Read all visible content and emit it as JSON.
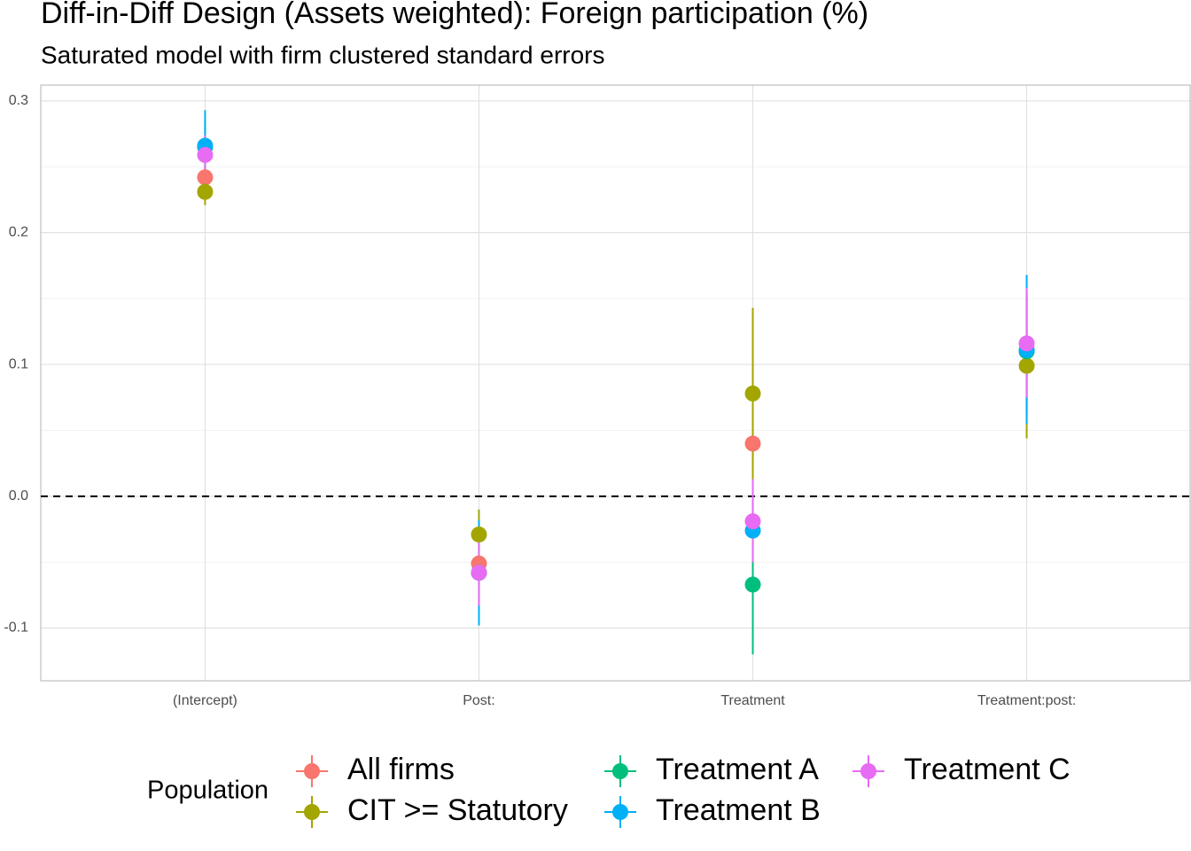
{
  "chart_data": {
    "type": "pointrange",
    "title": "Diff-in-Diff Design (Assets weighted): Foreign participation (%)",
    "subtitle": "Saturated model with firm clustered standard errors",
    "legend_title": "Population",
    "legend_position": "bottom",
    "categories": [
      "(Intercept)",
      "Post:",
      "Treatment",
      "Treatment:post:"
    ],
    "ylim": [
      -0.14,
      0.312
    ],
    "yticks": [
      -0.1,
      {
        "value": 0,
        "label": "0.0"
      },
      0.1,
      0.2,
      0.3
    ],
    "grid": true,
    "hline": 0,
    "series": [
      {
        "name": "All firms",
        "color": "#F8766D",
        "values": [
          0.242,
          -0.051,
          0.04,
          0.11
        ],
        "lower": [
          0.232,
          -0.06,
          0.02,
          0.096
        ],
        "upper": [
          0.252,
          -0.042,
          0.06,
          0.124
        ]
      },
      {
        "name": "CIT >= Statutory",
        "color": "#A3A500",
        "values": [
          0.231,
          -0.029,
          0.078,
          0.099
        ],
        "lower": [
          0.221,
          -0.048,
          0.013,
          0.044
        ],
        "upper": [
          0.241,
          -0.01,
          0.143,
          0.153
        ]
      },
      {
        "name": "Treatment A",
        "color": "#00BF7D",
        "values": [
          0.265,
          -0.058,
          -0.067,
          0.11
        ],
        "lower": [
          0.245,
          -0.08,
          -0.12,
          0.065
        ],
        "upper": [
          0.285,
          -0.036,
          -0.013,
          0.155
        ]
      },
      {
        "name": "Treatment B",
        "color": "#00B0F6",
        "values": [
          0.266,
          -0.058,
          -0.026,
          0.111
        ],
        "lower": [
          0.239,
          -0.098,
          -0.05,
          0.055
        ],
        "upper": [
          0.293,
          -0.018,
          0.0,
          0.168
        ]
      },
      {
        "name": "Treatment C",
        "color": "#E76BF3",
        "values": [
          0.259,
          -0.058,
          -0.019,
          0.116
        ],
        "lower": [
          0.245,
          -0.083,
          -0.05,
          0.075
        ],
        "upper": [
          0.274,
          -0.034,
          0.013,
          0.158
        ]
      }
    ]
  }
}
